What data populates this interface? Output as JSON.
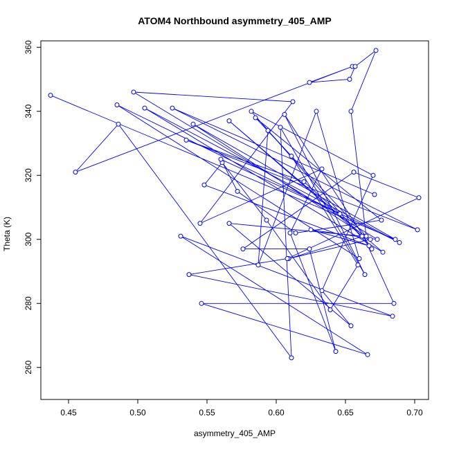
{
  "chart_data": {
    "type": "line",
    "title": "ATOM4 Northbound asymmetry_405_AMP",
    "xlabel": "asymmetry_405_AMP",
    "ylabel": "Theta (K)",
    "xlim": [
      0.43,
      0.71
    ],
    "ylim": [
      250,
      362
    ],
    "xticks": [
      0.45,
      0.5,
      0.55,
      0.6,
      0.65,
      0.7
    ],
    "yticks": [
      260,
      280,
      300,
      320,
      340,
      360
    ],
    "xtick_labels": [
      "0.45",
      "0.50",
      "0.55",
      "0.60",
      "0.65",
      "0.70"
    ],
    "ytick_labels": [
      "260",
      "280",
      "300",
      "320",
      "340",
      "360"
    ],
    "color": "#0000ff",
    "marker": "open-circle",
    "grid": false,
    "series": [
      {
        "x": [
          0.437,
          0.686,
          0.54,
          0.668,
          0.609,
          0.663,
          0.685,
          0.546,
          0.666,
          0.531,
          0.684,
          0.537,
          0.608,
          0.703,
          0.656,
          0.576,
          0.624,
          0.643,
          0.61,
          0.633,
          0.545,
          0.612,
          0.497,
          0.673,
          0.625,
          0.667,
          0.548,
          0.561,
          0.593,
          0.639,
          0.659,
          0.611,
          0.594,
          0.587,
          0.629,
          0.66,
          0.485,
          0.689,
          0.505,
          0.677,
          0.566,
          0.662,
          0.566,
          0.654,
          0.633,
          0.67,
          0.582,
          0.669,
          0.606,
          0.664,
          0.603,
          0.611,
          0.486,
          0.455,
          0.655,
          0.624,
          0.653,
          0.657,
          0.672,
          0.654,
          0.665,
          0.585,
          0.676,
          0.614,
          0.572,
          0.56,
          0.646,
          0.62,
          0.535,
          0.702,
          0.525,
          0.671
        ],
        "y": [
          345,
          300,
          336,
          300,
          294,
          301,
          280,
          280,
          264,
          301,
          276,
          289,
          294,
          313,
          321,
          297,
          297,
          265,
          302,
          322,
          305,
          343,
          346,
          300,
          303,
          298,
          317,
          324,
          306,
          278,
          292,
          326,
          334,
          292,
          340,
          294,
          342,
          299,
          341,
          296,
          337,
          301,
          305,
          273,
          284,
          320,
          340,
          297,
          339,
          289,
          335,
          263,
          336,
          321,
          354,
          349,
          350,
          354,
          359,
          340,
          301,
          338,
          306,
          302,
          315,
          325,
          308,
          318,
          331,
          303,
          341,
          314
        ]
      }
    ]
  }
}
